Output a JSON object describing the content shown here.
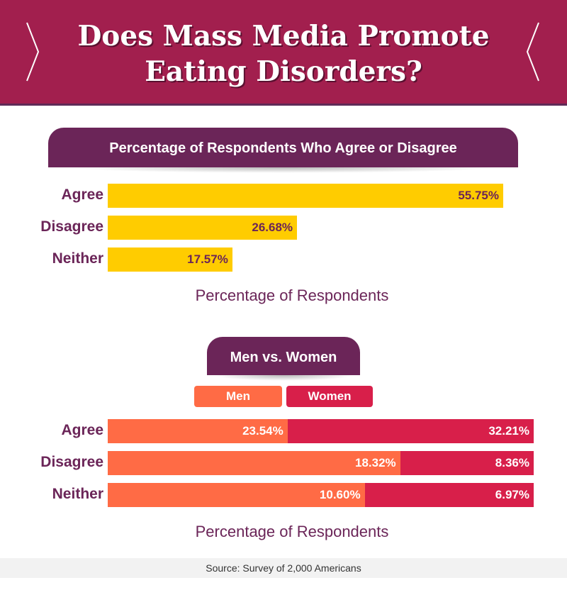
{
  "header": {
    "title_line1": "Does Mass Media Promote",
    "title_line2": "Eating Disorders?"
  },
  "colors": {
    "header_bg": "#a21f4e",
    "panel_title_bg": "#6b2558",
    "label_text": "#6b2558",
    "yellow": "#ffcc00",
    "men": "#ff6b45",
    "women": "#d81f4a"
  },
  "chart_data": [
    {
      "type": "bar",
      "orientation": "horizontal",
      "title": "Percentage of Respondents Who Agree or Disagree",
      "categories": [
        "Agree",
        "Disagree",
        "Neither"
      ],
      "values": [
        55.75,
        26.68,
        17.57
      ],
      "value_labels": [
        "55.75%",
        "26.68%",
        "17.57%"
      ],
      "xlabel": "Percentage of Respondents",
      "xlim": [
        0,
        56
      ],
      "grid": false
    },
    {
      "type": "bar",
      "orientation": "horizontal",
      "stacked": true,
      "title": "Men vs. Women",
      "categories": [
        "Agree",
        "Disagree",
        "Neither"
      ],
      "series": [
        {
          "name": "Men",
          "values": [
            23.54,
            18.32,
            10.6
          ],
          "value_labels": [
            "23.54%",
            "18.32%",
            "10.60%"
          ]
        },
        {
          "name": "Women",
          "values": [
            32.21,
            8.36,
            6.97
          ],
          "value_labels": [
            "32.21%",
            "8.36%",
            "6.97%"
          ]
        }
      ],
      "xlabel": "Percentage of Respondents",
      "legend": "top-center",
      "grid": false
    }
  ],
  "footer": {
    "source": "Source: Survey of 2,000 Americans"
  }
}
